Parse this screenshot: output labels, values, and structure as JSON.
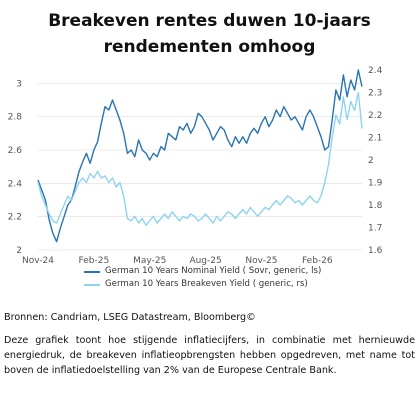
{
  "title_line1": "Breakeven rentes duwen 10-jaars",
  "title_line2": "rendementen omhoog",
  "sources": "Bronnen: Candriam, LSEG Datastream, Bloomberg©",
  "note": "Deze grafiek toont hoe stijgende inflatiecijfers, in combinatie met hernieuwde energiedruk, de breakeven inflatieopbrengsten hebben opgedreven, met name tot boven de inflatiedoelstelling van 2% van de Europese Centrale Bank.",
  "colors": {
    "nominal": "#2a74b4",
    "breakeven": "#8fd4ef",
    "grid": "#dddddd",
    "tick": "#555555"
  },
  "chart_data": {
    "type": "line",
    "grid": "horizontal",
    "legend_position": "bottom",
    "xlabel": "",
    "ylabel": "",
    "x_ticks": [
      "Nov-24",
      "Feb-25",
      "May-25",
      "Aug-25",
      "Nov-25",
      "Feb-26"
    ],
    "y_left_ticks": [
      "2",
      "2.2",
      "2.4",
      "2.6",
      "2.8",
      "3"
    ],
    "y_right_ticks": [
      "1.6",
      "1.7",
      "1.8",
      "1.9",
      "2",
      "2.1",
      "2.2",
      "2.3",
      "2.4"
    ],
    "y_left_range": [
      2.0,
      3.08
    ],
    "y_right_range": [
      1.6,
      2.4
    ],
    "x_range_months": [
      0,
      17.4
    ],
    "series": [
      {
        "name": "German 10 Years Nominal Yield ( Sovr, generic, ls)",
        "axis": "left",
        "x": [
          0,
          0.2,
          0.4,
          0.6,
          0.8,
          1.0,
          1.2,
          1.4,
          1.6,
          1.8,
          2.0,
          2.2,
          2.4,
          2.6,
          2.8,
          3.0,
          3.2,
          3.4,
          3.6,
          3.8,
          4.0,
          4.2,
          4.4,
          4.6,
          4.8,
          5.0,
          5.2,
          5.4,
          5.6,
          5.8,
          6.0,
          6.2,
          6.4,
          6.6,
          6.8,
          7.0,
          7.2,
          7.4,
          7.6,
          7.8,
          8.0,
          8.2,
          8.4,
          8.6,
          8.8,
          9.0,
          9.2,
          9.4,
          9.6,
          9.8,
          10.0,
          10.2,
          10.4,
          10.6,
          10.8,
          11.0,
          11.2,
          11.4,
          11.6,
          11.8,
          12.0,
          12.2,
          12.4,
          12.6,
          12.8,
          13.0,
          13.2,
          13.4,
          13.6,
          13.8,
          14.0,
          14.2,
          14.4,
          14.6,
          14.8,
          15.0,
          15.2,
          15.4,
          15.6,
          15.8,
          16.0,
          16.2,
          16.4,
          16.6,
          16.8,
          17.0,
          17.2,
          17.4
        ],
        "values": [
          2.42,
          2.36,
          2.3,
          2.18,
          2.1,
          2.05,
          2.13,
          2.2,
          2.27,
          2.3,
          2.38,
          2.47,
          2.53,
          2.58,
          2.52,
          2.6,
          2.65,
          2.76,
          2.86,
          2.84,
          2.9,
          2.84,
          2.78,
          2.7,
          2.58,
          2.6,
          2.56,
          2.66,
          2.6,
          2.58,
          2.54,
          2.58,
          2.56,
          2.62,
          2.6,
          2.7,
          2.68,
          2.66,
          2.74,
          2.72,
          2.76,
          2.7,
          2.74,
          2.82,
          2.8,
          2.76,
          2.72,
          2.66,
          2.7,
          2.74,
          2.72,
          2.66,
          2.62,
          2.68,
          2.64,
          2.68,
          2.64,
          2.7,
          2.73,
          2.7,
          2.76,
          2.8,
          2.74,
          2.78,
          2.84,
          2.8,
          2.86,
          2.82,
          2.78,
          2.8,
          2.76,
          2.72,
          2.8,
          2.84,
          2.8,
          2.74,
          2.68,
          2.6,
          2.62,
          2.78,
          2.96,
          2.9,
          3.05,
          2.92,
          3.02,
          2.96,
          3.08,
          2.98
        ]
      },
      {
        "name": "German 10 Years Breakeven Yield ( generic, rs)",
        "axis": "right",
        "x": [
          0,
          0.2,
          0.4,
          0.6,
          0.8,
          1.0,
          1.2,
          1.4,
          1.6,
          1.8,
          2.0,
          2.2,
          2.4,
          2.6,
          2.8,
          3.0,
          3.2,
          3.4,
          3.6,
          3.8,
          4.0,
          4.2,
          4.4,
          4.6,
          4.8,
          5.0,
          5.2,
          5.4,
          5.6,
          5.8,
          6.0,
          6.2,
          6.4,
          6.6,
          6.8,
          7.0,
          7.2,
          7.4,
          7.6,
          7.8,
          8.0,
          8.2,
          8.4,
          8.6,
          8.8,
          9.0,
          9.2,
          9.4,
          9.6,
          9.8,
          10.0,
          10.2,
          10.4,
          10.6,
          10.8,
          11.0,
          11.2,
          11.4,
          11.6,
          11.8,
          12.0,
          12.2,
          12.4,
          12.6,
          12.8,
          13.0,
          13.2,
          13.4,
          13.6,
          13.8,
          14.0,
          14.2,
          14.4,
          14.6,
          14.8,
          15.0,
          15.2,
          15.4,
          15.6,
          15.8,
          16.0,
          16.2,
          16.4,
          16.6,
          16.8,
          17.0,
          17.2,
          17.4
        ],
        "values": [
          1.9,
          1.84,
          1.8,
          1.76,
          1.73,
          1.72,
          1.76,
          1.8,
          1.84,
          1.82,
          1.86,
          1.9,
          1.92,
          1.9,
          1.94,
          1.92,
          1.95,
          1.92,
          1.93,
          1.9,
          1.92,
          1.88,
          1.9,
          1.84,
          1.74,
          1.73,
          1.75,
          1.72,
          1.74,
          1.71,
          1.73,
          1.75,
          1.72,
          1.74,
          1.76,
          1.74,
          1.77,
          1.75,
          1.73,
          1.75,
          1.74,
          1.76,
          1.75,
          1.73,
          1.74,
          1.76,
          1.74,
          1.72,
          1.75,
          1.73,
          1.75,
          1.77,
          1.76,
          1.74,
          1.76,
          1.78,
          1.76,
          1.79,
          1.77,
          1.75,
          1.77,
          1.79,
          1.78,
          1.8,
          1.82,
          1.8,
          1.82,
          1.84,
          1.83,
          1.81,
          1.82,
          1.8,
          1.82,
          1.84,
          1.82,
          1.81,
          1.84,
          1.9,
          1.98,
          2.1,
          2.2,
          2.16,
          2.28,
          2.18,
          2.26,
          2.22,
          2.3,
          2.14
        ]
      }
    ]
  }
}
